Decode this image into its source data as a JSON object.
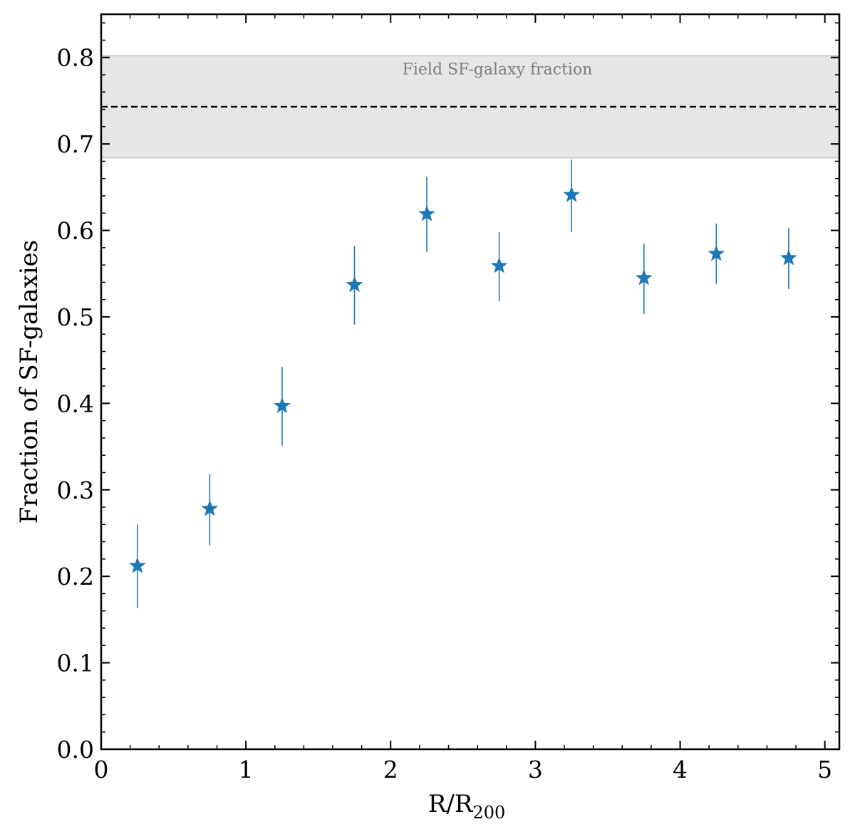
{
  "chart_data": {
    "type": "scatter",
    "xlabel": "R/R",
    "xlabel_subscript": "200",
    "ylabel": "Fraction of SF-galaxies",
    "xlim": [
      0,
      5.1
    ],
    "ylim": [
      0,
      0.85
    ],
    "xticks": [
      0,
      1,
      2,
      3,
      4,
      5
    ],
    "xtick_labels": [
      "0",
      "1",
      "2",
      "3",
      "4",
      "5"
    ],
    "xminor_step": 0.2,
    "yticks": [
      0.0,
      0.1,
      0.2,
      0.3,
      0.4,
      0.5,
      0.6,
      0.7,
      0.8
    ],
    "ytick_labels": [
      "0.0",
      "0.1",
      "0.2",
      "0.3",
      "0.4",
      "0.5",
      "0.6",
      "0.7",
      "0.8"
    ],
    "yminor_step": 0.02,
    "grid": false,
    "marker": "star",
    "series": [
      {
        "color": "#1f77b4",
        "points": [
          {
            "x": 0.25,
            "y": 0.212,
            "ylow": 0.163,
            "yhigh": 0.26
          },
          {
            "x": 0.75,
            "y": 0.278,
            "ylow": 0.236,
            "yhigh": 0.318
          },
          {
            "x": 1.25,
            "y": 0.397,
            "ylow": 0.351,
            "yhigh": 0.442
          },
          {
            "x": 1.75,
            "y": 0.537,
            "ylow": 0.491,
            "yhigh": 0.582
          },
          {
            "x": 2.25,
            "y": 0.619,
            "ylow": 0.575,
            "yhigh": 0.662
          },
          {
            "x": 2.75,
            "y": 0.559,
            "ylow": 0.518,
            "yhigh": 0.598
          },
          {
            "x": 3.25,
            "y": 0.641,
            "ylow": 0.598,
            "yhigh": 0.682
          },
          {
            "x": 3.75,
            "y": 0.545,
            "ylow": 0.503,
            "yhigh": 0.585
          },
          {
            "x": 4.25,
            "y": 0.573,
            "ylow": 0.538,
            "yhigh": 0.608
          },
          {
            "x": 4.75,
            "y": 0.568,
            "ylow": 0.532,
            "yhigh": 0.603
          }
        ]
      }
    ],
    "reference_band": {
      "label": "Field SF-galaxy fraction",
      "center": 0.743,
      "low": 0.684,
      "high": 0.802,
      "band_color": "#e6e6e6",
      "edge_color": "#cccccc",
      "line_color": "#000000"
    }
  }
}
